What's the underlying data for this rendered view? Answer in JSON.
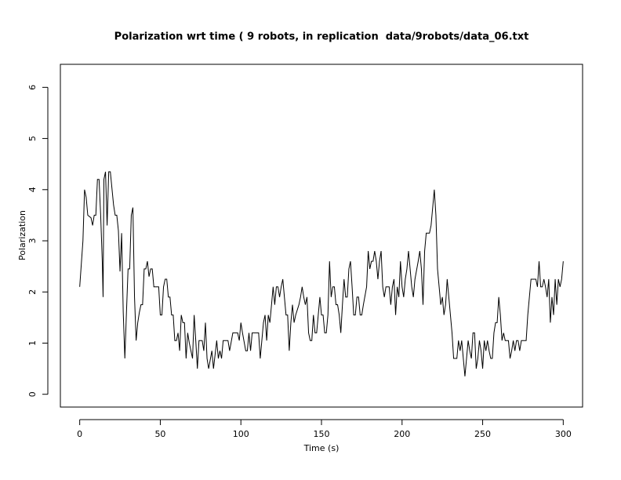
{
  "chart_data": {
    "type": "line",
    "title": "Polarization wrt time ( 9 robots, in replication  data/9robots/data_06.txt",
    "x_label": "Time (s)",
    "y_label": "Polarization",
    "xlim": [
      -12,
      312
    ],
    "ylim": [
      -0.25,
      6.45
    ],
    "xticks": [
      0,
      50,
      100,
      150,
      200,
      250,
      300
    ],
    "yticks": [
      0,
      1,
      2,
      3,
      4,
      5,
      6
    ],
    "series": [
      {
        "name": "Polarization",
        "color": "#000000",
        "x": [
          0,
          2,
          3,
          4,
          5,
          7,
          8,
          9,
          10,
          11,
          12,
          13,
          14,
          14.5,
          15,
          16,
          17,
          18,
          19,
          21,
          22,
          23,
          24,
          25,
          26,
          27,
          28,
          29,
          30,
          31,
          32,
          33,
          34,
          35,
          36,
          37,
          38,
          39,
          40,
          41,
          42,
          43,
          44,
          45,
          46,
          49,
          50,
          51,
          52,
          53,
          54,
          55,
          56,
          57,
          58,
          59,
          60,
          61,
          62,
          63,
          64,
          65,
          66,
          67,
          68,
          69,
          70,
          71,
          72,
          73,
          74,
          76,
          77,
          78,
          79,
          80,
          82,
          83,
          85,
          86,
          87,
          88,
          89,
          92,
          93,
          95,
          98,
          99,
          100,
          101,
          103,
          104,
          105,
          106,
          107,
          111,
          112,
          113,
          114,
          115,
          116,
          117,
          118,
          119,
          120,
          121,
          122,
          123,
          124,
          125,
          126,
          127,
          128,
          129,
          130,
          131,
          132,
          133,
          134,
          136,
          137,
          138,
          139,
          140,
          141,
          142,
          143,
          144,
          145,
          146,
          147,
          148,
          149,
          150,
          151,
          152,
          153,
          154,
          155,
          156,
          157,
          158,
          159,
          160,
          161,
          162,
          163,
          164,
          165,
          166,
          167,
          168,
          169,
          170,
          171,
          172,
          173,
          174,
          175,
          176,
          178,
          179,
          180,
          181,
          182,
          183,
          184,
          185,
          186,
          187,
          188,
          189,
          190,
          192,
          193,
          194,
          195,
          196,
          197,
          198,
          199,
          200,
          201,
          202,
          203,
          204,
          205,
          206,
          207,
          208,
          210,
          211,
          212,
          213,
          214,
          215,
          217,
          218,
          219,
          220,
          221,
          222,
          223,
          224,
          225,
          226,
          227,
          228,
          229,
          230,
          231,
          232,
          234,
          235,
          236,
          237,
          238,
          239,
          240,
          241,
          242,
          243,
          244,
          245,
          246,
          247,
          248,
          249,
          250,
          251,
          252,
          253,
          254,
          255,
          256,
          257,
          258,
          259,
          260,
          261,
          262,
          263,
          264,
          266,
          267,
          268,
          269,
          270,
          271,
          272,
          273,
          274,
          277,
          278,
          280,
          283,
          284,
          285,
          286,
          287,
          288,
          289,
          290,
          291,
          292,
          293,
          294,
          295,
          296,
          297,
          298,
          299,
          300
        ],
        "values": [
          2.1,
          3.0,
          4.0,
          3.85,
          3.5,
          3.45,
          3.3,
          3.5,
          3.5,
          4.2,
          4.2,
          3.5,
          2.6,
          1.9,
          4.2,
          4.35,
          3.3,
          4.35,
          4.35,
          3.7,
          3.5,
          3.5,
          3.2,
          2.4,
          3.15,
          1.6,
          0.7,
          1.6,
          2.45,
          2.45,
          3.5,
          3.65,
          1.9,
          1.05,
          1.4,
          1.6,
          1.75,
          1.75,
          2.45,
          2.45,
          2.6,
          2.3,
          2.45,
          2.45,
          2.1,
          2.1,
          1.55,
          1.55,
          2.1,
          2.25,
          2.25,
          1.9,
          1.9,
          1.55,
          1.55,
          1.05,
          1.05,
          1.2,
          0.85,
          1.55,
          1.4,
          1.4,
          0.7,
          1.2,
          1.0,
          0.85,
          0.7,
          1.55,
          1.05,
          0.5,
          1.05,
          1.05,
          0.85,
          1.4,
          0.7,
          0.5,
          0.85,
          0.5,
          1.05,
          0.7,
          0.85,
          0.7,
          1.05,
          1.05,
          0.85,
          1.2,
          1.2,
          1.05,
          1.4,
          1.2,
          0.85,
          0.85,
          1.2,
          0.85,
          1.2,
          1.2,
          0.7,
          1.05,
          1.4,
          1.55,
          1.05,
          1.55,
          1.4,
          1.75,
          2.1,
          1.75,
          2.1,
          2.1,
          1.9,
          2.1,
          2.25,
          1.9,
          1.55,
          1.55,
          0.85,
          1.4,
          1.75,
          1.4,
          1.55,
          1.75,
          1.9,
          2.1,
          1.9,
          1.75,
          1.9,
          1.2,
          1.05,
          1.05,
          1.55,
          1.2,
          1.2,
          1.55,
          1.9,
          1.55,
          1.55,
          1.2,
          1.2,
          1.55,
          2.6,
          1.9,
          2.1,
          2.1,
          1.75,
          1.75,
          1.55,
          1.2,
          1.75,
          2.25,
          1.9,
          1.9,
          2.45,
          2.6,
          2.1,
          1.55,
          1.55,
          1.9,
          1.9,
          1.55,
          1.55,
          1.75,
          2.1,
          2.8,
          2.45,
          2.6,
          2.6,
          2.8,
          2.6,
          2.25,
          2.6,
          2.8,
          2.1,
          1.9,
          2.1,
          2.1,
          1.75,
          2.1,
          2.25,
          1.55,
          2.1,
          1.9,
          2.6,
          2.1,
          1.9,
          2.25,
          2.45,
          2.8,
          2.45,
          2.1,
          1.9,
          2.25,
          2.6,
          2.8,
          2.45,
          1.75,
          2.8,
          3.15,
          3.15,
          3.3,
          3.65,
          4.0,
          3.5,
          2.45,
          2.1,
          1.75,
          1.9,
          1.55,
          1.75,
          2.25,
          1.9,
          1.55,
          1.2,
          0.7,
          0.7,
          1.05,
          0.85,
          1.05,
          0.7,
          0.35,
          0.7,
          1.05,
          0.85,
          0.7,
          1.2,
          1.2,
          0.5,
          0.7,
          1.05,
          0.85,
          0.5,
          1.05,
          0.85,
          1.05,
          0.85,
          0.7,
          0.7,
          1.2,
          1.4,
          1.4,
          1.9,
          1.55,
          1.05,
          1.2,
          1.05,
          1.05,
          0.7,
          0.85,
          1.05,
          0.85,
          1.05,
          1.05,
          0.85,
          1.05,
          1.05,
          1.55,
          2.25,
          2.25,
          2.1,
          2.6,
          2.1,
          2.1,
          2.25,
          2.1,
          1.9,
          2.25,
          1.4,
          1.9,
          1.55,
          2.25,
          1.75,
          2.25,
          2.1,
          2.25,
          2.6
        ]
      }
    ]
  }
}
